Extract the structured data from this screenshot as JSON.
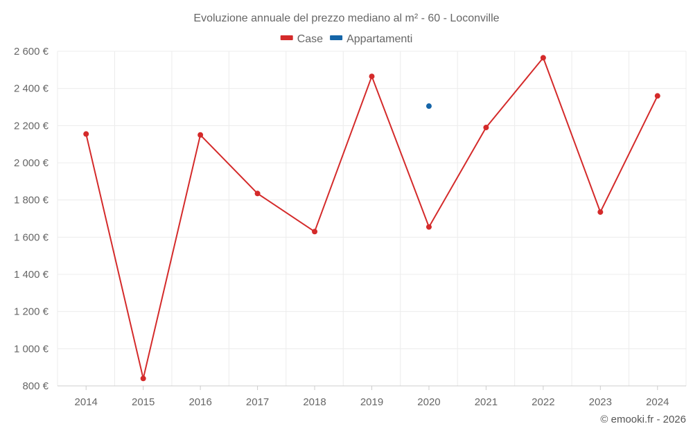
{
  "chart_data": {
    "type": "line",
    "title": "Evoluzione annuale del prezzo mediano al m² - 60 - Loconville",
    "xlabel": "",
    "ylabel": "",
    "categories": [
      "2014",
      "2015",
      "2016",
      "2017",
      "2018",
      "2019",
      "2020",
      "2021",
      "2022",
      "2023",
      "2024"
    ],
    "ylim": [
      800,
      2600
    ],
    "yticks": [
      800,
      1000,
      1200,
      1400,
      1600,
      1800,
      2000,
      2200,
      2400,
      2600
    ],
    "ytick_labels": [
      "800 €",
      "1 000 €",
      "1 200 €",
      "1 400 €",
      "1 600 €",
      "1 800 €",
      "2 000 €",
      "2 200 €",
      "2 400 €",
      "2 600 €"
    ],
    "grid": true,
    "legend_position": "top-center",
    "series": [
      {
        "name": "Case",
        "color": "#d42a2a",
        "values": [
          2155,
          840,
          2150,
          1835,
          1630,
          2465,
          1655,
          2190,
          2565,
          1735,
          2360
        ]
      },
      {
        "name": "Appartamenti",
        "color": "#1565a8",
        "values": [
          null,
          null,
          null,
          null,
          null,
          null,
          2305,
          null,
          null,
          null,
          null
        ]
      }
    ]
  },
  "credit": "© emooki.fr - 2026"
}
